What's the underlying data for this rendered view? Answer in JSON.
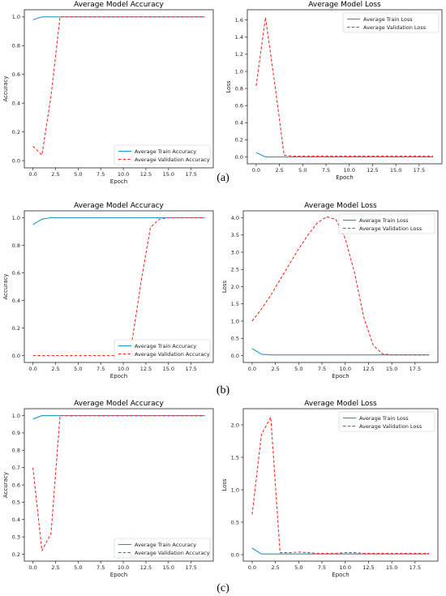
{
  "panel_labels": [
    "(a)",
    "(b)",
    "(c)"
  ],
  "chart_data": [
    {
      "type": "line",
      "title": "Average Model Accuracy",
      "xlabel": "Epoch",
      "ylabel": "Accuracy",
      "xlim": [
        -0.95,
        19.95
      ],
      "ylim": [
        -0.05,
        1.05
      ],
      "xticks": [
        0.0,
        2.5,
        5.0,
        7.5,
        10.0,
        12.5,
        15.0,
        17.5
      ],
      "yticks": [
        0.0,
        0.2,
        0.4,
        0.6,
        0.8,
        1.0
      ],
      "xtick_labels": [
        "0.0",
        "2.5",
        "5.0",
        "7.5",
        "10.0",
        "12.5",
        "15.0",
        "17.5"
      ],
      "ytick_labels": [
        "0.0",
        "0.2",
        "0.4",
        "0.6",
        "0.8",
        "1.0"
      ],
      "legend_position": "lower-right",
      "grid": false,
      "x": [
        0,
        1,
        2,
        3,
        4,
        5,
        6,
        7,
        8,
        9,
        10,
        11,
        12,
        13,
        14,
        15,
        16,
        17,
        18,
        19
      ],
      "series": [
        {
          "name": "Average Train Accuracy",
          "color": "#1f9ac8",
          "style": "solid",
          "values": [
            0.98,
            1.0,
            1.0,
            1.0,
            1.0,
            1.0,
            1.0,
            1.0,
            1.0,
            1.0,
            1.0,
            1.0,
            1.0,
            1.0,
            1.0,
            1.0,
            1.0,
            1.0,
            1.0,
            1.0
          ]
        },
        {
          "name": "Average Validation Accuracy",
          "color": "#ff2a2a",
          "style": "dashed",
          "values": [
            0.1,
            0.04,
            0.45,
            1.0,
            1.0,
            1.0,
            1.0,
            1.0,
            1.0,
            1.0,
            1.0,
            1.0,
            1.0,
            1.0,
            1.0,
            1.0,
            1.0,
            1.0,
            1.0,
            1.0
          ]
        }
      ]
    },
    {
      "type": "line",
      "title": "Average Model Loss",
      "xlabel": "Epoch",
      "ylabel": "Loss",
      "xlim": [
        -0.95,
        19.95
      ],
      "ylim": [
        -0.08,
        1.72
      ],
      "xticks": [
        0.0,
        2.5,
        5.0,
        7.5,
        10.0,
        12.5,
        15.0,
        17.5
      ],
      "yticks": [
        0.0,
        0.2,
        0.4,
        0.6,
        0.8,
        1.0,
        1.2,
        1.4,
        1.6
      ],
      "xtick_labels": [
        "0.0",
        "2.5",
        "5.0",
        "7.5",
        "10.0",
        "12.5",
        "15.0",
        "17.5"
      ],
      "ytick_labels": [
        "0.0",
        "0.2",
        "0.4",
        "0.6",
        "0.8",
        "1.0",
        "1.2",
        "1.4",
        "1.6"
      ],
      "legend_position": "top-right",
      "grid": false,
      "x": [
        0,
        1,
        2,
        3,
        4,
        5,
        6,
        7,
        8,
        9,
        10,
        11,
        12,
        13,
        14,
        15,
        16,
        17,
        18,
        19
      ],
      "series": [
        {
          "name": "Average Train Loss",
          "color": "#1f9ac8",
          "style": "solid",
          "values": [
            0.05,
            0.0,
            0.0,
            0.0,
            0.0,
            0.0,
            0.0,
            0.0,
            0.0,
            0.0,
            0.0,
            0.0,
            0.0,
            0.0,
            0.0,
            0.0,
            0.0,
            0.0,
            0.0,
            0.0
          ]
        },
        {
          "name": "Average Validation Loss",
          "color": "#ff2a2a",
          "style": "dashed",
          "values": [
            0.83,
            1.63,
            0.85,
            0.02,
            0.01,
            0.01,
            0.01,
            0.01,
            0.01,
            0.01,
            0.01,
            0.01,
            0.01,
            0.01,
            0.01,
            0.01,
            0.01,
            0.01,
            0.01,
            0.01
          ]
        }
      ]
    },
    {
      "type": "line",
      "title": "Average Model Accuracy",
      "xlabel": "Epoch",
      "ylabel": "Accuracy",
      "xlim": [
        -0.95,
        19.95
      ],
      "ylim": [
        -0.05,
        1.05
      ],
      "xticks": [
        0.0,
        2.5,
        5.0,
        7.5,
        10.0,
        12.5,
        15.0,
        17.5
      ],
      "yticks": [
        0.0,
        0.2,
        0.4,
        0.6,
        0.8,
        1.0
      ],
      "xtick_labels": [
        "0.0",
        "2.5",
        "5.0",
        "7.5",
        "10.0",
        "12.5",
        "15.0",
        "17.5"
      ],
      "ytick_labels": [
        "0.0",
        "0.2",
        "0.4",
        "0.6",
        "0.8",
        "1.0"
      ],
      "legend_position": "lower-right",
      "grid": false,
      "x": [
        0,
        1,
        2,
        3,
        4,
        5,
        6,
        7,
        8,
        9,
        10,
        11,
        12,
        13,
        14,
        15,
        16,
        17,
        18,
        19
      ],
      "series": [
        {
          "name": "Average Train Accuracy",
          "color": "#1f9ac8",
          "style": "solid",
          "values": [
            0.95,
            0.99,
            1.0,
            1.0,
            1.0,
            1.0,
            1.0,
            1.0,
            1.0,
            1.0,
            1.0,
            1.0,
            1.0,
            1.0,
            1.0,
            1.0,
            1.0,
            1.0,
            1.0,
            1.0
          ]
        },
        {
          "name": "Average Validation Accuracy",
          "color": "#ff2a2a",
          "style": "dashed",
          "values": [
            0.0,
            0.0,
            0.0,
            0.0,
            0.0,
            0.0,
            0.0,
            0.0,
            0.0,
            0.0,
            0.02,
            0.12,
            0.55,
            0.93,
            0.99,
            1.0,
            1.0,
            1.0,
            1.0,
            1.0
          ]
        }
      ]
    },
    {
      "type": "line",
      "title": "Average Model Loss",
      "xlabel": "Epoch",
      "ylabel": "Loss",
      "xlim": [
        -0.95,
        19.95
      ],
      "ylim": [
        -0.2,
        4.2
      ],
      "xticks": [
        0.0,
        2.5,
        5.0,
        7.5,
        10.0,
        12.5,
        15.0,
        17.5
      ],
      "yticks": [
        0.0,
        0.5,
        1.0,
        1.5,
        2.0,
        2.5,
        3.0,
        3.5,
        4.0
      ],
      "xtick_labels": [
        "0.0",
        "2.5",
        "5.0",
        "7.5",
        "10.0",
        "12.5",
        "15.0",
        "17.5"
      ],
      "ytick_labels": [
        "0.0",
        "0.5",
        "1.0",
        "1.5",
        "2.0",
        "2.5",
        "3.0",
        "3.5",
        "4.0"
      ],
      "legend_position": "top-right",
      "grid": false,
      "x": [
        0,
        1,
        2,
        3,
        4,
        5,
        6,
        7,
        8,
        9,
        10,
        11,
        12,
        13,
        14,
        15,
        16,
        17,
        18,
        19
      ],
      "series": [
        {
          "name": "Average Train Loss",
          "color": "#1f9ac8",
          "style": "solid",
          "values": [
            0.2,
            0.04,
            0.02,
            0.02,
            0.02,
            0.02,
            0.02,
            0.02,
            0.02,
            0.02,
            0.02,
            0.02,
            0.02,
            0.02,
            0.02,
            0.02,
            0.02,
            0.02,
            0.02,
            0.02
          ]
        },
        {
          "name": "Average Validation Loss",
          "color": "#ff2a2a",
          "style": "dashed",
          "values": [
            1.0,
            1.35,
            1.75,
            2.2,
            2.65,
            3.1,
            3.5,
            3.85,
            4.03,
            3.95,
            3.4,
            2.4,
            1.1,
            0.3,
            0.05,
            0.02,
            0.02,
            0.02,
            0.02,
            0.02
          ]
        }
      ]
    },
    {
      "type": "line",
      "title": "Average Model Accuracy",
      "xlabel": "Epoch",
      "ylabel": "Accuracy",
      "xlim": [
        -0.95,
        19.95
      ],
      "ylim": [
        0.16,
        1.04
      ],
      "xticks": [
        0.0,
        2.5,
        5.0,
        7.5,
        10.0,
        12.5,
        15.0,
        17.5
      ],
      "yticks": [
        0.2,
        0.3,
        0.4,
        0.5,
        0.6,
        0.7,
        0.8,
        0.9,
        1.0
      ],
      "xtick_labels": [
        "0.0",
        "2.5",
        "5.0",
        "7.5",
        "10.0",
        "12.5",
        "15.0",
        "17.5"
      ],
      "ytick_labels": [
        "0.2",
        "0.3",
        "0.4",
        "0.5",
        "0.6",
        "0.7",
        "0.8",
        "0.9",
        "1.0"
      ],
      "legend_position": "lower-right",
      "grid": false,
      "x": [
        0,
        1,
        2,
        3,
        4,
        5,
        6,
        7,
        8,
        9,
        10,
        11,
        12,
        13,
        14,
        15,
        16,
        17,
        18,
        19
      ],
      "series": [
        {
          "name": "Average Train Accuracy",
          "color": "#1f9ac8",
          "style": "solid",
          "values": [
            0.98,
            1.0,
            1.0,
            1.0,
            1.0,
            1.0,
            1.0,
            1.0,
            1.0,
            1.0,
            1.0,
            1.0,
            1.0,
            1.0,
            1.0,
            1.0,
            1.0,
            1.0,
            1.0,
            1.0
          ]
        },
        {
          "name": "Average Validation Accuracy",
          "color": "#ff2a2a",
          "style": "dashed",
          "values": [
            0.7,
            0.22,
            0.32,
            1.0,
            1.0,
            1.0,
            1.0,
            1.0,
            1.0,
            1.0,
            1.0,
            1.0,
            1.0,
            1.0,
            1.0,
            1.0,
            1.0,
            1.0,
            1.0,
            1.0
          ]
        }
      ]
    },
    {
      "type": "line",
      "title": "Average Model Loss",
      "xlabel": "Epoch",
      "ylabel": "Loss",
      "xlim": [
        -0.95,
        19.95
      ],
      "ylim": [
        -0.1,
        2.25
      ],
      "xticks": [
        0.0,
        2.5,
        5.0,
        7.5,
        10.0,
        12.5,
        15.0,
        17.5
      ],
      "yticks": [
        0.0,
        0.5,
        1.0,
        1.5,
        2.0
      ],
      "xtick_labels": [
        "0.0",
        "2.5",
        "5.0",
        "7.5",
        "10.0",
        "12.5",
        "15.0",
        "17.5"
      ],
      "ytick_labels": [
        "0.0",
        "0.5",
        "1.0",
        "1.5",
        "2.0"
      ],
      "legend_position": "top-right",
      "grid": false,
      "x": [
        0,
        1,
        2,
        3,
        4,
        5,
        6,
        7,
        8,
        9,
        10,
        11,
        12,
        13,
        14,
        15,
        16,
        17,
        18,
        19
      ],
      "series": [
        {
          "name": "Average Train Loss",
          "color": "#1f9ac8",
          "style": "solid",
          "values": [
            0.1,
            0.01,
            0.01,
            0.01,
            0.01,
            0.01,
            0.01,
            0.01,
            0.01,
            0.01,
            0.01,
            0.01,
            0.01,
            0.01,
            0.01,
            0.01,
            0.01,
            0.01,
            0.01,
            0.01
          ]
        },
        {
          "name": "Average Validation Loss",
          "color": "#ff2a2a",
          "style": "dashed",
          "values": [
            0.62,
            1.85,
            2.12,
            0.03,
            0.03,
            0.04,
            0.03,
            0.02,
            0.02,
            0.02,
            0.03,
            0.03,
            0.02,
            0.02,
            0.02,
            0.02,
            0.02,
            0.02,
            0.02,
            0.02
          ]
        }
      ]
    }
  ]
}
